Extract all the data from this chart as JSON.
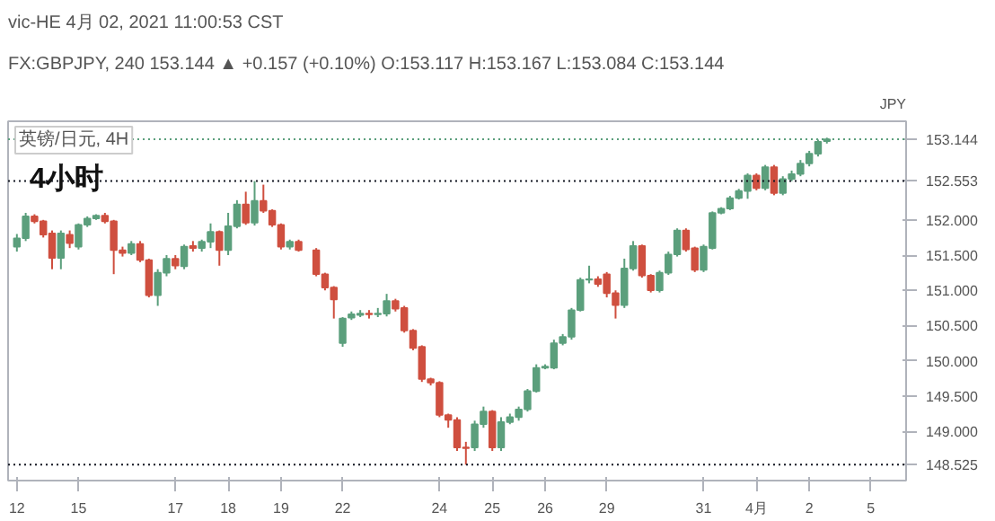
{
  "chart_data": {
    "type": "candlestick",
    "title": "4小时",
    "annotations": [
      "vic-HE 4月 02, 2021 11:00:53 CST",
      "FX:GBPJPY, 240  153.144 ▲ +0.157 (+0.10%)  O:153.117 H:153.167 L:153.084 C:153.144",
      "英镑/日元, 4H",
      "JPY"
    ],
    "categories": [
      "12",
      null,
      null,
      null,
      null,
      null,
      null,
      "15",
      null,
      null,
      null,
      null,
      null,
      null,
      null,
      null,
      null,
      null,
      "17",
      null,
      null,
      null,
      null,
      null,
      "18",
      null,
      null,
      null,
      null,
      null,
      "19",
      null,
      null,
      null,
      null,
      null,
      null,
      "22",
      null,
      null,
      null,
      null,
      null,
      null,
      null,
      null,
      null,
      null,
      "24",
      null,
      null,
      null,
      null,
      null,
      "25",
      null,
      null,
      null,
      null,
      null,
      "26",
      null,
      null,
      null,
      null,
      null,
      null,
      "29",
      null,
      null,
      null,
      null,
      null,
      null,
      null,
      null,
      null,
      null,
      "31",
      null,
      null,
      null,
      null,
      null,
      "4月",
      null,
      null,
      null,
      null,
      null,
      "2",
      null,
      null,
      null,
      null,
      null,
      null,
      "5"
    ],
    "ohlc": [
      [
        151.62,
        151.8,
        151.55,
        151.74
      ],
      [
        151.74,
        152.1,
        151.7,
        152.05
      ],
      [
        152.05,
        152.08,
        151.95,
        151.98
      ],
      [
        151.98,
        152.0,
        151.75,
        151.79
      ],
      [
        151.81,
        151.85,
        151.3,
        151.46
      ],
      [
        151.46,
        151.85,
        151.3,
        151.81
      ],
      [
        151.79,
        151.85,
        151.6,
        151.67
      ],
      [
        151.62,
        151.95,
        151.58,
        151.93
      ],
      [
        151.93,
        152.05,
        151.9,
        152.02
      ],
      [
        152.02,
        152.08,
        152.0,
        152.06
      ],
      [
        152.06,
        152.1,
        151.95,
        151.98
      ],
      [
        151.98,
        152.0,
        151.23,
        151.57
      ],
      [
        151.57,
        151.62,
        151.48,
        151.53
      ],
      [
        151.53,
        151.7,
        151.5,
        151.66
      ],
      [
        151.66,
        151.7,
        151.4,
        151.43
      ],
      [
        151.43,
        151.45,
        150.9,
        150.93
      ],
      [
        150.93,
        151.3,
        150.78,
        151.25
      ],
      [
        151.25,
        151.5,
        151.2,
        151.45
      ],
      [
        151.45,
        151.5,
        151.3,
        151.35
      ],
      [
        151.34,
        151.65,
        151.3,
        151.62
      ],
      [
        151.63,
        151.7,
        151.55,
        151.6
      ],
      [
        151.6,
        151.72,
        151.55,
        151.69
      ],
      [
        151.69,
        151.95,
        151.6,
        151.83
      ],
      [
        151.83,
        151.85,
        151.35,
        151.57
      ],
      [
        151.57,
        152.1,
        151.5,
        151.91
      ],
      [
        151.91,
        152.28,
        151.88,
        152.22
      ],
      [
        152.22,
        152.4,
        151.93,
        151.96
      ],
      [
        151.96,
        152.55,
        151.92,
        152.27
      ],
      [
        152.27,
        152.5,
        152.1,
        152.13
      ],
      [
        152.13,
        152.15,
        151.9,
        151.93
      ],
      [
        151.93,
        151.95,
        151.58,
        151.62
      ],
      [
        151.62,
        151.72,
        151.58,
        151.69
      ],
      [
        151.69,
        151.72,
        151.55,
        151.57
      ],
      null,
      [
        151.57,
        151.6,
        151.2,
        151.23
      ],
      [
        151.23,
        151.25,
        151.0,
        151.04
      ],
      [
        151.04,
        151.06,
        150.6,
        150.87
      ],
      [
        150.25,
        150.62,
        150.2,
        150.6
      ],
      [
        150.61,
        150.7,
        150.58,
        150.66
      ],
      [
        150.65,
        150.72,
        150.62,
        150.67
      ],
      [
        150.67,
        150.72,
        150.6,
        150.66
      ],
      [
        150.66,
        150.75,
        150.62,
        150.67
      ],
      [
        150.67,
        150.95,
        150.63,
        150.85
      ],
      [
        150.85,
        150.88,
        150.7,
        150.74
      ],
      [
        150.75,
        150.78,
        150.4,
        150.43
      ],
      [
        150.43,
        150.45,
        150.15,
        150.18
      ],
      [
        150.2,
        150.22,
        149.7,
        149.74
      ],
      [
        149.74,
        149.76,
        149.65,
        149.69
      ],
      [
        149.69,
        149.71,
        149.2,
        149.23
      ],
      [
        149.23,
        149.25,
        149.05,
        149.16
      ],
      [
        149.16,
        149.2,
        148.72,
        148.77
      ],
      [
        148.77,
        148.85,
        148.525,
        148.76
      ],
      [
        148.77,
        149.15,
        148.72,
        149.1
      ],
      [
        149.1,
        149.35,
        149.05,
        149.28
      ],
      [
        149.28,
        149.3,
        148.72,
        148.77
      ],
      [
        148.77,
        149.2,
        148.72,
        149.13
      ],
      [
        149.13,
        149.25,
        149.1,
        149.2
      ],
      [
        149.2,
        149.35,
        149.15,
        149.31
      ],
      [
        149.31,
        149.6,
        149.28,
        149.57
      ],
      [
        149.57,
        149.95,
        149.55,
        149.9
      ],
      [
        149.9,
        149.95,
        149.88,
        149.92
      ],
      [
        149.9,
        150.3,
        149.88,
        150.25
      ],
      [
        150.25,
        150.38,
        150.22,
        150.34
      ],
      [
        150.34,
        150.75,
        150.3,
        150.72
      ],
      [
        150.72,
        151.18,
        150.7,
        151.15
      ],
      [
        151.15,
        151.35,
        151.1,
        151.16
      ],
      [
        151.16,
        151.2,
        151.05,
        151.09
      ],
      [
        151.23,
        151.26,
        150.9,
        150.96
      ],
      [
        150.96,
        151.0,
        150.6,
        150.79
      ],
      [
        150.79,
        151.45,
        150.75,
        151.31
      ],
      [
        151.31,
        151.7,
        151.28,
        151.63
      ],
      [
        151.63,
        151.65,
        151.18,
        151.21
      ],
      [
        151.21,
        151.23,
        150.97,
        151.0
      ],
      [
        151.0,
        151.28,
        150.97,
        151.25
      ],
      [
        151.25,
        151.55,
        151.22,
        151.51
      ],
      [
        151.51,
        151.88,
        151.48,
        151.85
      ],
      [
        151.85,
        151.88,
        151.55,
        151.58
      ],
      [
        151.6,
        151.62,
        151.26,
        151.29
      ],
      [
        151.29,
        151.65,
        151.26,
        151.62
      ],
      [
        151.6,
        152.12,
        151.58,
        152.1
      ],
      [
        152.1,
        152.18,
        152.08,
        152.16
      ],
      [
        152.16,
        152.34,
        152.14,
        152.31
      ],
      [
        152.31,
        152.44,
        152.29,
        152.41
      ],
      [
        152.41,
        152.66,
        152.3,
        152.63
      ],
      [
        152.63,
        152.66,
        152.42,
        152.45
      ],
      [
        152.45,
        152.78,
        152.42,
        152.75
      ],
      [
        152.75,
        152.78,
        152.35,
        152.38
      ],
      [
        152.38,
        152.62,
        152.35,
        152.58
      ],
      [
        152.58,
        152.7,
        152.55,
        152.65
      ],
      [
        152.65,
        152.85,
        152.62,
        152.8
      ],
      [
        152.8,
        152.98,
        152.76,
        152.94
      ],
      [
        152.94,
        153.14,
        152.9,
        153.11
      ],
      [
        153.117,
        153.167,
        153.084,
        153.144
      ],
      null,
      null,
      null,
      null,
      null
    ],
    "colors": [
      "#5b9f7c",
      "#5b9f7c",
      "#cf4f3f",
      "#cf4f3f",
      "#cf4f3f",
      "#5b9f7c",
      "#cf4f3f",
      "#5b9f7c",
      "#5b9f7c",
      "#5b9f7c",
      "#cf4f3f",
      "#cf4f3f",
      "#cf4f3f",
      "#5b9f7c",
      "#cf4f3f",
      "#cf4f3f",
      "#5b9f7c",
      "#5b9f7c",
      "#cf4f3f",
      "#5b9f7c",
      "#cf4f3f",
      "#5b9f7c",
      "#5b9f7c",
      "#cf4f3f",
      "#5b9f7c",
      "#5b9f7c",
      "#cf4f3f",
      "#5b9f7c",
      "#cf4f3f",
      "#cf4f3f",
      "#cf4f3f",
      "#5b9f7c",
      "#cf4f3f",
      null,
      "#cf4f3f",
      "#cf4f3f",
      "#cf4f3f",
      "#5b9f7c",
      "#5b9f7c",
      "#5b9f7c",
      "#cf4f3f",
      "#5b9f7c",
      "#5b9f7c",
      "#cf4f3f",
      "#cf4f3f",
      "#cf4f3f",
      "#cf4f3f",
      "#cf4f3f",
      "#cf4f3f",
      "#cf4f3f",
      "#cf4f3f",
      "#cf4f3f",
      "#5b9f7c",
      "#5b9f7c",
      "#cf4f3f",
      "#5b9f7c",
      "#5b9f7c",
      "#5b9f7c",
      "#5b9f7c",
      "#5b9f7c",
      "#5b9f7c",
      "#5b9f7c",
      "#5b9f7c",
      "#5b9f7c",
      "#5b9f7c",
      "#5b9f7c",
      "#cf4f3f",
      "#cf4f3f",
      "#cf4f3f",
      "#5b9f7c",
      "#5b9f7c",
      "#cf4f3f",
      "#cf4f3f",
      "#5b9f7c",
      "#5b9f7c",
      "#5b9f7c",
      "#cf4f3f",
      "#cf4f3f",
      "#5b9f7c",
      "#5b9f7c",
      "#5b9f7c",
      "#5b9f7c",
      "#5b9f7c",
      "#5b9f7c",
      "#cf4f3f",
      "#5b9f7c",
      "#cf4f3f",
      "#5b9f7c",
      "#5b9f7c",
      "#5b9f7c",
      "#5b9f7c",
      "#5b9f7c",
      "#5b9f7c",
      null,
      null,
      null,
      null,
      null
    ],
    "ylim": [
      148.3,
      153.4
    ],
    "yticks": [
      {
        "value": 149,
        "label": "149.000"
      },
      {
        "value": 149.5,
        "label": "149.500"
      },
      {
        "value": 150,
        "label": "150.000"
      },
      {
        "value": 150.5,
        "label": "150.500"
      },
      {
        "value": 151,
        "label": "151.000"
      },
      {
        "value": 151.5,
        "label": "151.500"
      },
      {
        "value": 152,
        "label": "152.000"
      }
    ],
    "ref_lines": [
      {
        "axis": "y",
        "value": 152.553,
        "label": "152.553",
        "color": "#131722",
        "line_style": "dotted"
      },
      {
        "axis": "y",
        "value": 148.525,
        "label": "148.525",
        "color": "#131722",
        "line_style": "dotted"
      },
      {
        "axis": "y",
        "value": 153.144,
        "label": "153.144",
        "color": "#5b9f7c",
        "line_style": "dotted"
      }
    ]
  }
}
